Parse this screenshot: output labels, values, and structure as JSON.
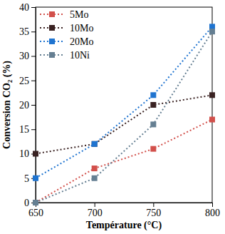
{
  "chart_data": {
    "type": "line",
    "x_label": "Température (°C)",
    "y_label": "Conversion CO₂ (%)",
    "x": [
      650,
      700,
      750,
      800
    ],
    "xlim": [
      650,
      800
    ],
    "xticks": [
      650,
      700,
      750,
      800
    ],
    "ylim": [
      0,
      40
    ],
    "yticks": [
      0,
      5,
      10,
      15,
      20,
      25,
      30,
      35,
      40
    ],
    "legend": "upper left",
    "marker": "square",
    "line_style": "dotted",
    "series": [
      {
        "name": "5Mo",
        "color": "#d2504b",
        "values": [
          0,
          7,
          11,
          17
        ]
      },
      {
        "name": "10Mo",
        "color": "#3a2222",
        "values": [
          10,
          12,
          20,
          22
        ]
      },
      {
        "name": "20Mo",
        "color": "#1f74d0",
        "values": [
          5,
          12,
          22,
          36
        ]
      },
      {
        "name": "10Ni",
        "color": "#657f92",
        "values": [
          0,
          5,
          16,
          35
        ]
      }
    ]
  }
}
